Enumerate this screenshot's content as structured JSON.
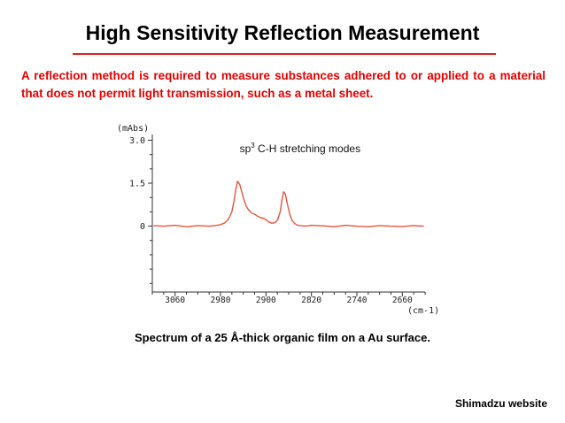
{
  "slide": {
    "title": "High Sensitivity Reflection Measurement",
    "intro": "A reflection method is required to measure substances adhered to or applied to a material that does not permit light transmission, such as a metal sheet.",
    "caption": "Spectrum of a 25 Å-thick organic film on a Au surface.",
    "source": "Shimadzu website"
  },
  "colors": {
    "title_rule": "#e02020",
    "intro_text": "#e60000",
    "spectrum_line": "#e8553a",
    "axis": "#333333"
  },
  "chart_data": {
    "type": "line",
    "xlabel": "(cm-1)",
    "ylabel": "(mAbs)",
    "x_reversed": true,
    "xlim": [
      3100,
      2620
    ],
    "ylim": [
      -2.3,
      3.2
    ],
    "xticks": [
      3060,
      2980,
      2900,
      2820,
      2740,
      2660
    ],
    "yticks": [
      3.0,
      1.5,
      0
    ],
    "ytick_labels": [
      "3.0",
      "1.5",
      "0"
    ],
    "annotation": {
      "prefix": "sp",
      "sup": "3",
      "suffix": " C-H stretching modes",
      "x": 2840,
      "y": 2.7
    },
    "grid": false,
    "legend": "none",
    "series": [
      {
        "x": [
          3098,
          3080,
          3060,
          3040,
          3020,
          3000,
          2990,
          2980,
          2972,
          2966,
          2960,
          2956,
          2953,
          2950,
          2946,
          2940,
          2935,
          2930,
          2925,
          2920,
          2915,
          2910,
          2905,
          2900,
          2895,
          2890,
          2885,
          2880,
          2875,
          2872,
          2869,
          2866,
          2862,
          2858,
          2854,
          2850,
          2845,
          2840,
          2830,
          2820,
          2800,
          2780,
          2760,
          2740,
          2720,
          2700,
          2680,
          2660,
          2640,
          2622
        ],
        "y": [
          0.02,
          0.0,
          0.03,
          -0.02,
          0.02,
          0.0,
          0.02,
          0.05,
          0.12,
          0.25,
          0.5,
          0.9,
          1.3,
          1.57,
          1.45,
          1.0,
          0.7,
          0.55,
          0.45,
          0.42,
          0.35,
          0.3,
          0.28,
          0.22,
          0.15,
          0.1,
          0.12,
          0.2,
          0.5,
          0.9,
          1.2,
          1.12,
          0.75,
          0.4,
          0.2,
          0.1,
          0.04,
          0.02,
          0.0,
          0.03,
          0.01,
          -0.02,
          0.03,
          0.0,
          -0.02,
          0.02,
          0.0,
          -0.01,
          0.02,
          0.0
        ]
      }
    ]
  }
}
